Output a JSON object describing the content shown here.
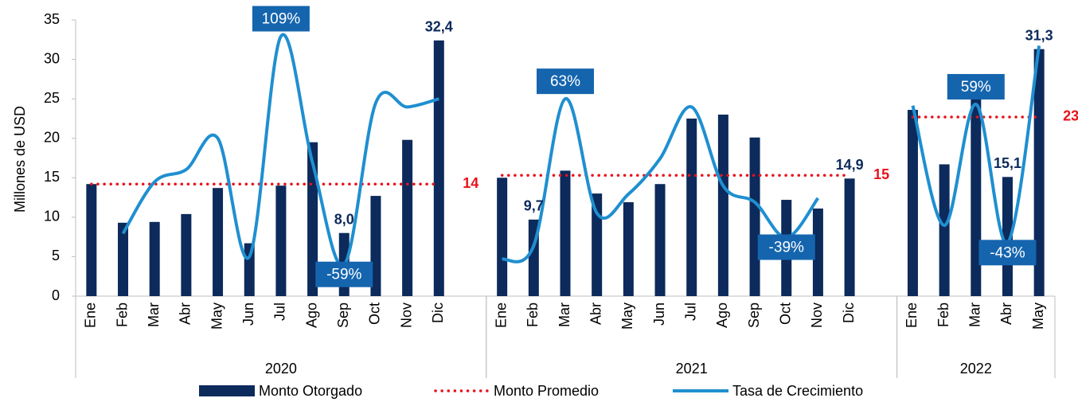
{
  "chart_data": {
    "type": "bar",
    "y_label": "Millones de USD",
    "categories": [
      "Ene",
      "Feb",
      "Mar",
      "Abr",
      "May",
      "Jun",
      "Jul",
      "Ago",
      "Sep",
      "Oct",
      "Nov",
      "Dic",
      null,
      "Ene",
      "Feb",
      "Mar",
      "Abr",
      "May",
      "Jun",
      "Jul",
      "Ago",
      "Sep",
      "Oct",
      "Nov",
      "Dic",
      null,
      "Ene",
      "Feb",
      "Mar",
      "Abr",
      "May"
    ],
    "groups": [
      "2020",
      "2021",
      "2022"
    ],
    "ylim": [
      0,
      35
    ],
    "yticks": [
      0,
      5,
      10,
      15,
      20,
      25,
      30,
      35
    ],
    "y2lim": [
      -82,
      121
    ],
    "series": [
      {
        "name": "Monto Otorgado",
        "type": "bar",
        "color": "#0c2a5b",
        "values": [
          14.2,
          9.3,
          9.4,
          10.4,
          13.7,
          6.7,
          14.0,
          19.5,
          8.0,
          12.7,
          19.8,
          32.4,
          null,
          15.0,
          9.7,
          15.9,
          13.0,
          11.9,
          14.2,
          22.5,
          23.0,
          20.1,
          12.2,
          11.1,
          14.9,
          null,
          23.6,
          16.7,
          26.6,
          15.1,
          31.3
        ],
        "value_labels": [
          null,
          null,
          null,
          null,
          null,
          null,
          null,
          null,
          "8,0",
          null,
          null,
          "32,4",
          null,
          null,
          "9,7",
          null,
          null,
          null,
          null,
          null,
          null,
          null,
          null,
          null,
          "14,9",
          null,
          null,
          null,
          null,
          "15,1",
          "31,3"
        ]
      },
      {
        "name": "Monto Promedio",
        "type": "dotted",
        "color": "#e8121b",
        "values": [
          14.2,
          14.2,
          14.2,
          14.2,
          14.2,
          14.2,
          14.2,
          14.2,
          14.2,
          14.2,
          14.2,
          14.2,
          null,
          15.3,
          15.3,
          15.3,
          15.3,
          15.3,
          15.3,
          15.3,
          15.3,
          15.3,
          15.3,
          15.3,
          15.3,
          null,
          22.7,
          22.7,
          22.7,
          22.7,
          22.7
        ],
        "value_labels": [
          null,
          null,
          null,
          null,
          null,
          null,
          null,
          null,
          null,
          null,
          null,
          "14",
          null,
          null,
          null,
          null,
          null,
          null,
          null,
          null,
          null,
          null,
          null,
          null,
          "15",
          null,
          null,
          null,
          null,
          null,
          "23"
        ]
      },
      {
        "name": "Tasa de Crecimiento",
        "type": "line",
        "axis": "y2",
        "color": "#1f8fd0",
        "values": [
          null,
          -36,
          2,
          11,
          34,
          -53,
          109,
          16,
          -59,
          60,
          57,
          63,
          null,
          -55,
          -45,
          63,
          -21,
          -7,
          19,
          57,
          -1,
          -13,
          -39,
          -10,
          null,
          null,
          58,
          -30,
          59,
          -43,
          102
        ],
        "value_labels": [
          null,
          null,
          null,
          null,
          null,
          null,
          "109%",
          null,
          "-59%",
          null,
          null,
          null,
          null,
          null,
          null,
          "63%",
          null,
          null,
          null,
          null,
          null,
          null,
          "-39%",
          null,
          null,
          null,
          null,
          null,
          "59%",
          "-43%",
          null
        ]
      }
    ]
  }
}
